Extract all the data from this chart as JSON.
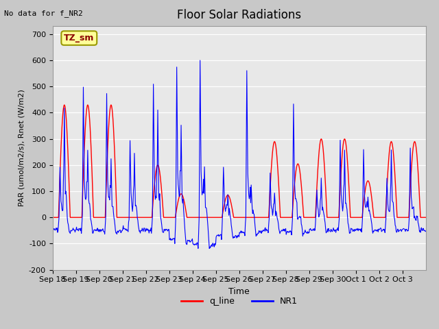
{
  "title": "Floor Solar Radiations",
  "xlabel": "Time",
  "ylabel": "PAR (umol/m2/s), Rnet (W/m2)",
  "ylim": [
    -200,
    730
  ],
  "yticks": [
    -200,
    -100,
    0,
    100,
    200,
    300,
    400,
    500,
    600,
    700
  ],
  "annotation_text": "No data for f_NR2",
  "legend_label1": "q_line",
  "legend_label2": "NR1",
  "legend_box_label": "TZ_sm",
  "color_red": "#FF0000",
  "color_blue": "#0000FF",
  "fig_bg": "#C8C8C8",
  "plot_bg": "#E8E8E8",
  "xtick_labels": [
    "Sep 18",
    "Sep 19",
    "Sep 20",
    "Sep 21",
    "Sep 22",
    "Sep 23",
    "Sep 24",
    "Sep 25",
    "Sep 26",
    "Sep 27",
    "Sep 28",
    "Sep 29",
    "Sep 30",
    "Oct 1",
    "Oct 2",
    "Oct 3"
  ],
  "n_days": 16,
  "red_peaks": [
    430,
    430,
    430,
    0,
    200,
    90,
    0,
    85,
    0,
    290,
    205,
    300,
    300,
    140,
    290,
    290
  ],
  "blue_peaks": [
    200,
    500,
    470,
    300,
    515,
    575,
    600,
    195,
    560,
    170,
    435,
    110,
    295,
    265,
    155,
    265
  ],
  "blue_peaks2": [
    420,
    260,
    225,
    245,
    410,
    350,
    190,
    85,
    130,
    100,
    0,
    150,
    260,
    80,
    260,
    0
  ],
  "blue_neg": [
    -55,
    -55,
    -60,
    -55,
    -55,
    -100,
    -120,
    -80,
    -65,
    -55,
    -65,
    -55,
    -55,
    -55,
    -55,
    -55
  ]
}
